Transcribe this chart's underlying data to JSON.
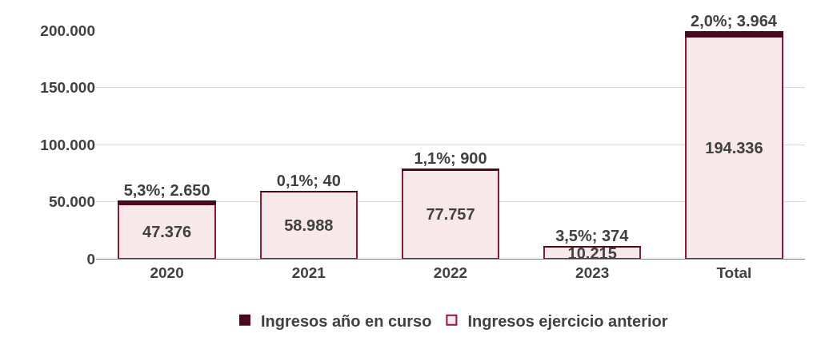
{
  "chart_data": {
    "type": "bar",
    "stacked": true,
    "categories": [
      "2020",
      "2021",
      "2022",
      "2023",
      "Total"
    ],
    "series": [
      {
        "name": "Ingresos ejercicio anterior",
        "color": "#f9e8e9",
        "values": [
          47376,
          58988,
          77757,
          10215,
          194336
        ],
        "value_labels": [
          "47.376",
          "58.988",
          "77.757",
          "10.215",
          "194.336"
        ]
      },
      {
        "name": "Ingresos año en curso",
        "color": "#4a0a1e",
        "values": [
          2650,
          40,
          900,
          374,
          3964
        ],
        "value_labels": [
          "5,3%; 2.650",
          "0,1%; 40",
          "1,1%; 900",
          "3,5%; 374",
          "2,0%; 3.964"
        ]
      }
    ],
    "ylim": [
      0,
      200000
    ],
    "yticks": [
      {
        "value": 0,
        "label": "0"
      },
      {
        "value": 50000,
        "label": "50.000"
      },
      {
        "value": 100000,
        "label": "100.000"
      },
      {
        "value": 150000,
        "label": "150.000"
      },
      {
        "value": 200000,
        "label": "200.000"
      }
    ],
    "grid": "y",
    "legend": "bottom"
  }
}
